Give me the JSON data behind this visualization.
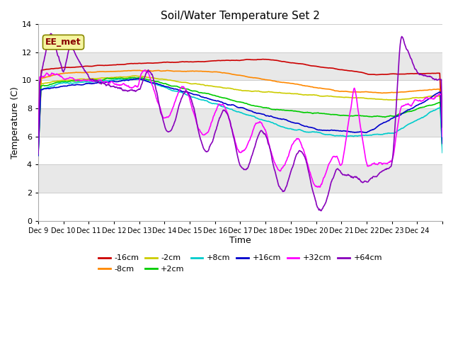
{
  "title": "Soil/Water Temperature Set 2",
  "xlabel": "Time",
  "ylabel": "Temperature (C)",
  "ylim": [
    0,
    14
  ],
  "xlim": [
    0,
    16
  ],
  "xtick_labels": [
    "Dec 9",
    "Dec 10",
    "Dec 11",
    "Dec 12",
    "Dec 13",
    "Dec 14",
    "Dec 15",
    "Dec 16",
    "Dec 17",
    "Dec 18",
    "Dec 19",
    "Dec 20",
    "Dec 21",
    "Dec 22",
    "Dec 23",
    "Dec 24"
  ],
  "ytick_vals": [
    0,
    2,
    4,
    6,
    8,
    10,
    12,
    14
  ],
  "annotation_text": "EE_met",
  "bg_color": "#ffffff",
  "plot_bg": "#ffffff",
  "band_color": "#e8e8e8",
  "gridline_color": "#cccccc",
  "colors": {
    "-16cm": "#cc0000",
    "-8cm": "#ff8800",
    "-2cm": "#cccc00",
    "+2cm": "#00cc00",
    "+8cm": "#00cccc",
    "+16cm": "#0000cc",
    "+32cm": "#ff00ff",
    "+64cm": "#8800bb"
  }
}
